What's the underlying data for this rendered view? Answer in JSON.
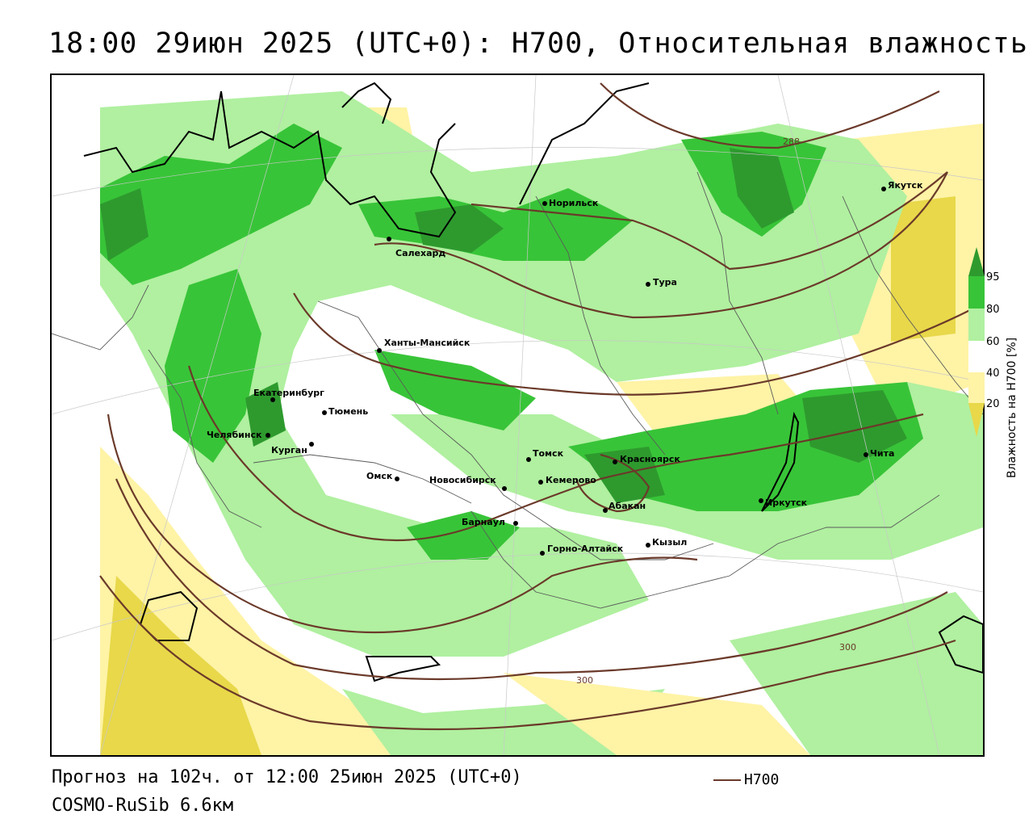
{
  "title": "18:00 29июн 2025 (UTC+0): H700, Относительная влажность",
  "footer": {
    "forecast": "Прогноз на 102ч. от 12:00 25июн 2025 (UTC+0)",
    "model": "COSMO-RuSib 6.6км",
    "legend_label": "H700"
  },
  "colorbar": {
    "title": "Влажность на H700 [%]",
    "ticks": [
      "95",
      "80",
      "60",
      "40",
      "20"
    ],
    "colors": [
      "#2e9a2e",
      "#38c438",
      "#b0f0a0",
      "#ffffff",
      "#fff3a6",
      "#e8d84a"
    ]
  },
  "colors": {
    "contour": "#6b3a2a",
    "coast": "#000000",
    "border": "#5a5a5a"
  },
  "cities": [
    {
      "name": "Норильск"
    },
    {
      "name": "Якутск"
    },
    {
      "name": "Салехард"
    },
    {
      "name": "Тура"
    },
    {
      "name": "Ханты-Мансийск"
    },
    {
      "name": "Екатеринбург"
    },
    {
      "name": "Тюмень"
    },
    {
      "name": "Челябинск"
    },
    {
      "name": "Курган"
    },
    {
      "name": "Омск"
    },
    {
      "name": "Новосибирск"
    },
    {
      "name": "Томск"
    },
    {
      "name": "Кемерово"
    },
    {
      "name": "Красноярск"
    },
    {
      "name": "Абакан"
    },
    {
      "name": "Барнаул"
    },
    {
      "name": "Горно-Алтайск"
    },
    {
      "name": "Кызыл"
    },
    {
      "name": "Иркутск"
    },
    {
      "name": "Чита"
    }
  ],
  "contour_labels": [
    "288",
    "300",
    "300"
  ]
}
